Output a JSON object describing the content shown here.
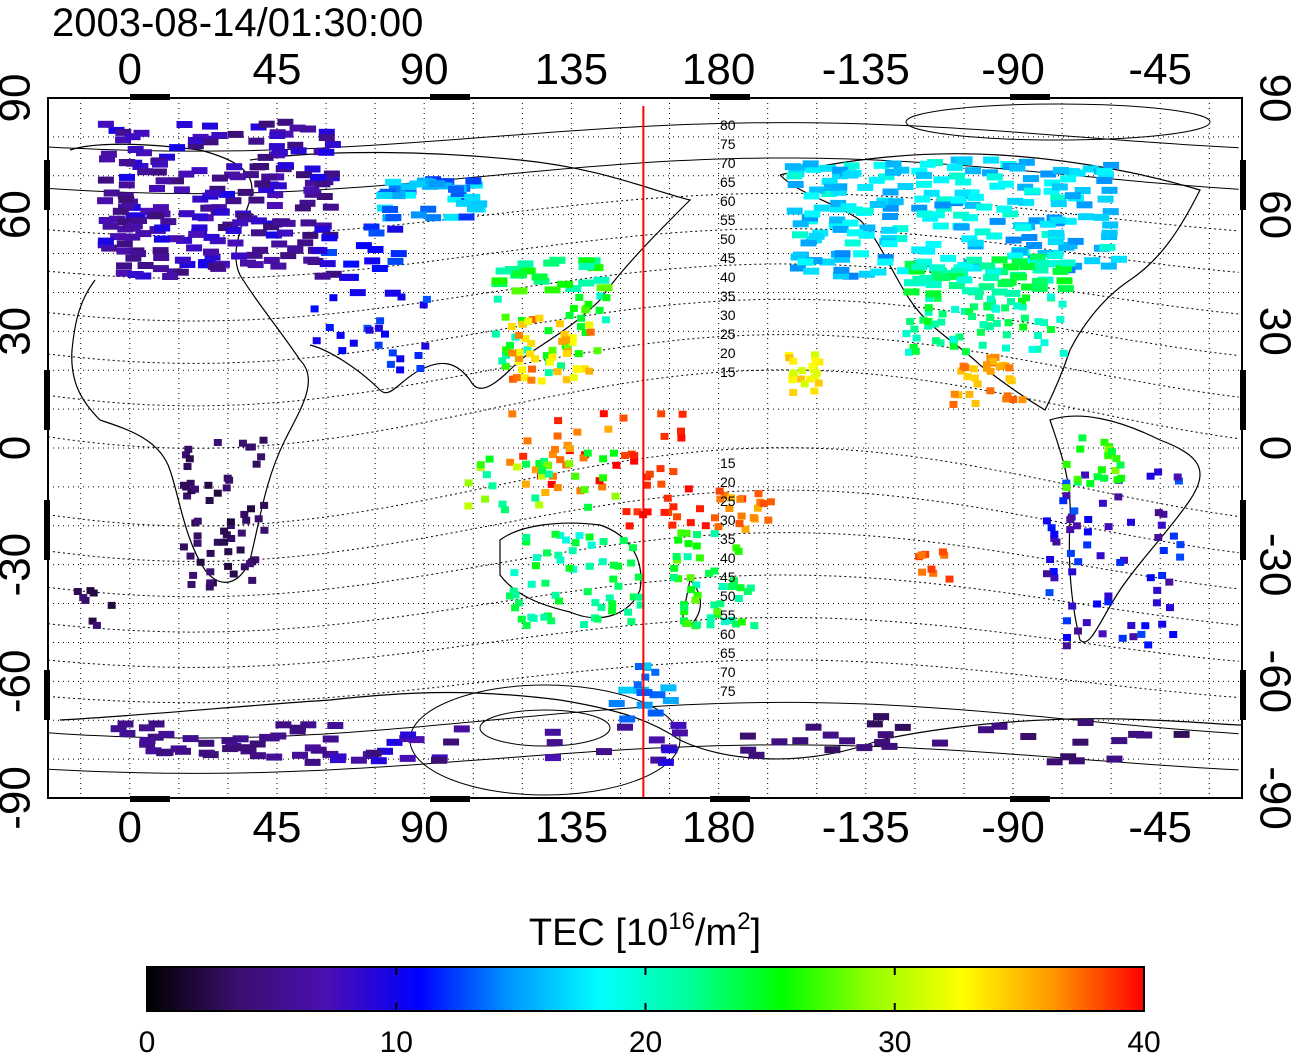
{
  "timestamp": "2003-08-14/01:30:00",
  "colorbar": {
    "title": "TEC  [10",
    "title_sup": "16",
    "title_mid": "/m",
    "title_sup2": "2",
    "title_end": "]",
    "ticks": [
      "0",
      "10",
      "20",
      "30",
      "40"
    ],
    "range": [
      0,
      40
    ],
    "colors": [
      "#000000",
      "#3a0f6e",
      "#4b0fb4",
      "#0000ff",
      "#0096ff",
      "#00ffff",
      "#00ff96",
      "#00ff00",
      "#96ff00",
      "#ffff00",
      "#ff9600",
      "#ff0000"
    ]
  },
  "axes": {
    "top_ticks": [
      "0",
      "45",
      "90",
      "135",
      "180",
      "-135",
      "-90",
      "-45"
    ],
    "bottom_ticks": [
      "0",
      "45",
      "90",
      "135",
      "180",
      "-135",
      "-90",
      "-45"
    ],
    "left_ticks": [
      "90",
      "60",
      "30",
      "0",
      "-30",
      "-60",
      "-90"
    ],
    "right_ticks": [
      "90",
      "60",
      "30",
      "0",
      "-30",
      "-60",
      "-90"
    ],
    "lon_range": [
      -25,
      340
    ],
    "lat_range": [
      -90,
      90
    ]
  },
  "marker": {
    "longitude": 157,
    "color": "#ff0000"
  },
  "contour_labels": {
    "north": [
      "80",
      "75",
      "70",
      "65",
      "60",
      "55",
      "50",
      "45",
      "40",
      "35",
      "30",
      "25",
      "20",
      "15"
    ],
    "south": [
      "15",
      "20",
      "25",
      "30",
      "35",
      "40",
      "45",
      "50",
      "55",
      "60",
      "65",
      "70",
      "75"
    ]
  }
}
